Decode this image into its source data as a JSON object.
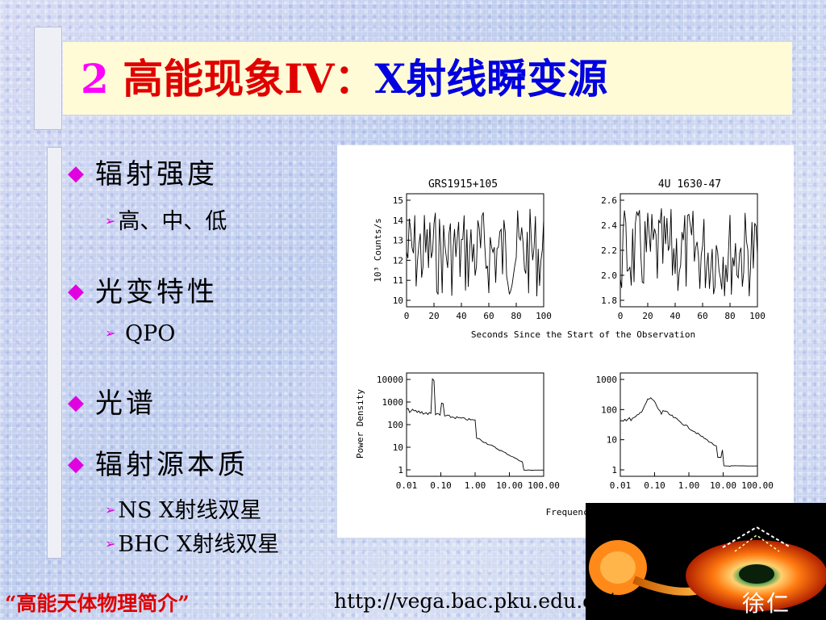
{
  "title": {
    "num": "2",
    "part1": "高能现象IV：",
    "part2": "X射线瞬变源"
  },
  "bullets": [
    {
      "label": "辐射强度",
      "subs": [
        "高、中、低"
      ]
    },
    {
      "label": "光变特性",
      "subs": [
        " QPO"
      ]
    },
    {
      "label": "光谱",
      "subs": []
    },
    {
      "label": "辐射源本质",
      "subs": [
        "NS X射线双星",
        "BHC X射线双星"
      ]
    }
  ],
  "figure": {
    "top_left_title": "GRS1915+105",
    "top_right_title": "4U 1630-47",
    "top_ylabel": "10³ Counts/s",
    "top_xlabel": "Seconds Since the Start of the Observation",
    "bottom_ylabel": "Power Density",
    "bottom_xlabel": "Frequency (Hz)",
    "top_left_yticks": [
      "15",
      "14",
      "13",
      "12",
      "11",
      "10"
    ],
    "top_right_yticks": [
      "2.6",
      "2.4",
      "2.2",
      "2.0",
      "1.8"
    ],
    "top_xticks": [
      "0",
      "20",
      "40",
      "60",
      "80",
      "100"
    ],
    "bottom_left_yticks": [
      "10000",
      "1000",
      "100",
      "10",
      "1"
    ],
    "bottom_right_yticks": [
      "1000",
      "100",
      "10",
      "1"
    ],
    "bottom_xticks": [
      "0.01",
      "0.10",
      "1.00",
      "10.00",
      "100.00"
    ]
  },
  "chart_data": [
    {
      "type": "line",
      "title": "GRS1915+105",
      "xlabel": "Seconds Since the Start of the Observation",
      "ylabel": "10³ Counts/s",
      "xlim": [
        0,
        100
      ],
      "ylim": [
        9.5,
        15.5
      ]
    },
    {
      "type": "line",
      "title": "4U 1630-47",
      "xlabel": "Seconds Since the Start of the Observation",
      "ylabel": "",
      "xlim": [
        0,
        100
      ],
      "ylim": [
        1.6,
        2.7
      ]
    },
    {
      "type": "line",
      "title": "",
      "xlabel": "Frequency (Hz)",
      "ylabel": "Power Density",
      "xscale": "log",
      "yscale": "log",
      "xlim": [
        0.01,
        100
      ],
      "ylim": [
        1,
        10000
      ]
    },
    {
      "type": "line",
      "title": "",
      "xlabel": "Frequency (Hz)",
      "ylabel": "",
      "xscale": "log",
      "yscale": "log",
      "xlim": [
        0.01,
        100
      ],
      "ylim": [
        1,
        1000
      ]
    }
  ],
  "footer": {
    "course": "“高能天体物理简介”",
    "url": "http://vega.bac.pku.edu.cn/rxxu",
    "author": "徐仁"
  }
}
